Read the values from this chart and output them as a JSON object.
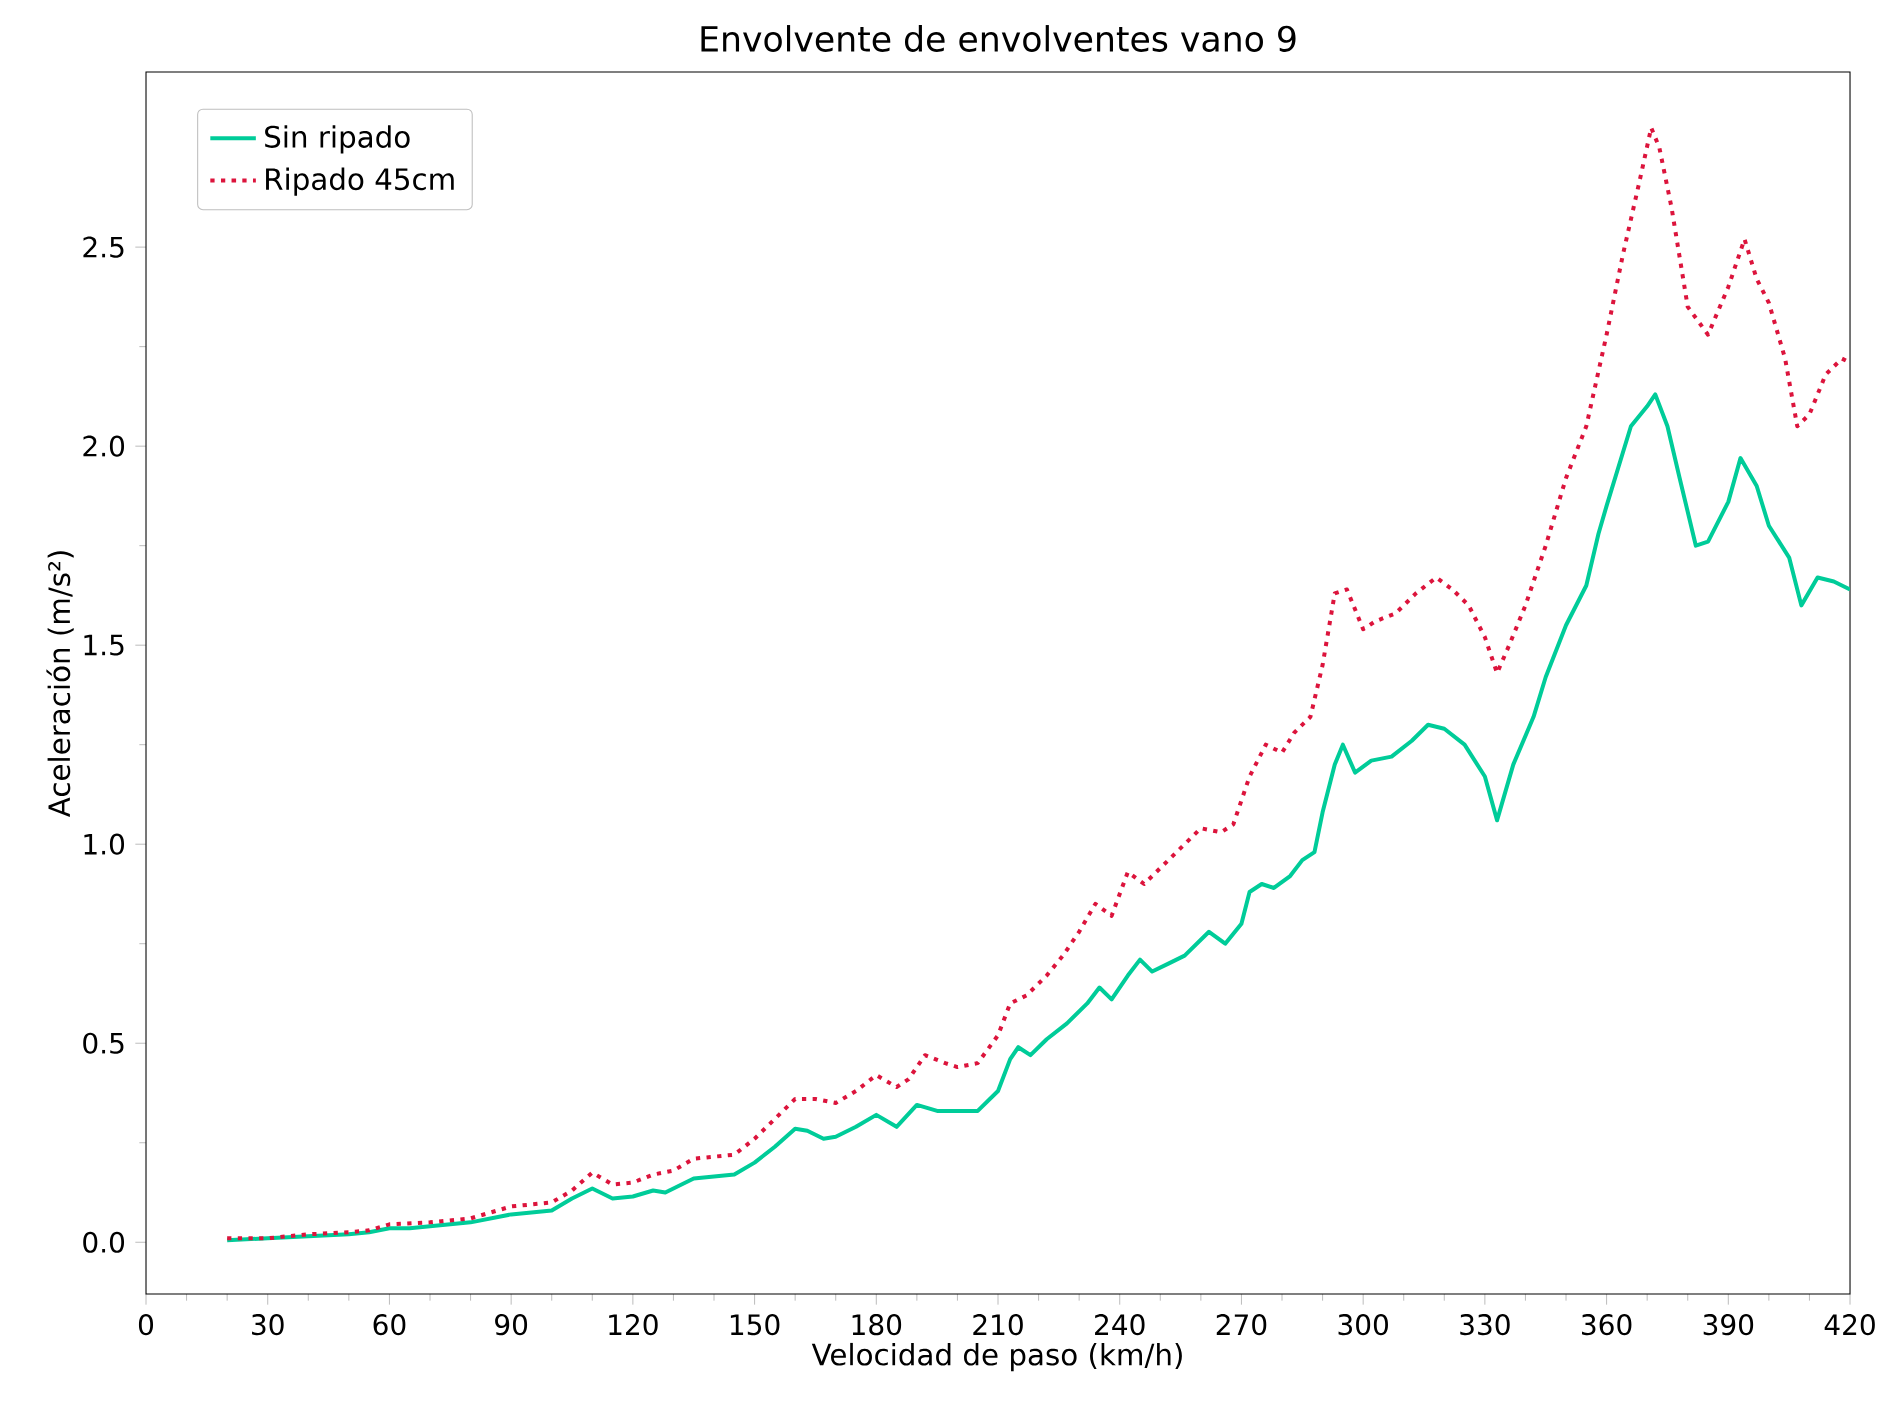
{
  "chart_data": {
    "type": "line",
    "title": "Envolvente de envolventes vano 9",
    "xlabel": "Velocidad de paso (km/h)",
    "ylabel": "Aceleración (m/s²)",
    "xlim": [
      0,
      420
    ],
    "ylim": [
      -0.13,
      2.94
    ],
    "xticks": [
      0,
      30,
      60,
      90,
      120,
      150,
      180,
      210,
      240,
      270,
      300,
      330,
      360,
      390,
      420
    ],
    "yticks": [
      {
        "value": 0,
        "label": "0.0"
      },
      0.5,
      {
        "value": 1,
        "label": "1.0"
      },
      1.5,
      {
        "value": 2,
        "label": "2.0"
      },
      2.5
    ],
    "legend": "top left",
    "series": [
      {
        "name": "Sin ripado",
        "color": "#00cc99",
        "line_style": "solid",
        "x": [
          20,
          30,
          40,
          50,
          55,
          60,
          65,
          70,
          80,
          90,
          95,
          100,
          105,
          110,
          115,
          120,
          125,
          128,
          135,
          140,
          145,
          150,
          155,
          160,
          163,
          167,
          170,
          175,
          180,
          185,
          190,
          195,
          200,
          205,
          210,
          213,
          215,
          218,
          222,
          227,
          232,
          235,
          238,
          242,
          245,
          248,
          252,
          256,
          262,
          266,
          270,
          272,
          275,
          278,
          282,
          285,
          288,
          290,
          293,
          295,
          298,
          302,
          307,
          312,
          316,
          320,
          325,
          330,
          333,
          337,
          342,
          345,
          350,
          355,
          358,
          360,
          363,
          366,
          370,
          372,
          375,
          378,
          382,
          385,
          390,
          393,
          397,
          400,
          405,
          408,
          412,
          416,
          420
        ],
        "values": [
          0.005,
          0.01,
          0.015,
          0.02,
          0.025,
          0.035,
          0.035,
          0.04,
          0.05,
          0.07,
          0.075,
          0.08,
          0.11,
          0.135,
          0.11,
          0.115,
          0.13,
          0.125,
          0.16,
          0.165,
          0.17,
          0.2,
          0.24,
          0.285,
          0.28,
          0.26,
          0.265,
          0.29,
          0.32,
          0.29,
          0.345,
          0.33,
          0.33,
          0.33,
          0.38,
          0.46,
          0.49,
          0.47,
          0.51,
          0.55,
          0.6,
          0.64,
          0.61,
          0.67,
          0.71,
          0.68,
          0.7,
          0.72,
          0.78,
          0.75,
          0.8,
          0.88,
          0.9,
          0.89,
          0.92,
          0.96,
          0.98,
          1.08,
          1.2,
          1.25,
          1.18,
          1.21,
          1.22,
          1.26,
          1.3,
          1.29,
          1.25,
          1.17,
          1.06,
          1.2,
          1.32,
          1.42,
          1.55,
          1.65,
          1.78,
          1.85,
          1.95,
          2.05,
          2.1,
          2.13,
          2.05,
          1.92,
          1.75,
          1.76,
          1.86,
          1.97,
          1.9,
          1.8,
          1.72,
          1.6,
          1.67,
          1.66,
          1.64
        ]
      },
      {
        "name": "Ripado 45cm",
        "color": "#dc143c",
        "line_style": "dotted",
        "x": [
          20,
          30,
          40,
          50,
          55,
          60,
          70,
          80,
          90,
          100,
          105,
          110,
          115,
          120,
          125,
          130,
          135,
          145,
          150,
          155,
          160,
          165,
          170,
          175,
          180,
          185,
          188,
          192,
          197,
          200,
          205,
          210,
          213,
          217,
          222,
          226,
          230,
          234,
          238,
          242,
          246,
          250,
          255,
          260,
          265,
          268,
          272,
          276,
          280,
          283,
          287,
          290,
          293,
          296,
          300,
          303,
          308,
          313,
          318,
          322,
          326,
          330,
          333,
          336,
          340,
          345,
          350,
          355,
          360,
          364,
          368,
          371,
          373,
          376,
          380,
          385,
          390,
          394,
          397,
          400,
          404,
          407,
          410,
          414,
          418,
          420
        ],
        "values": [
          0.01,
          0.01,
          0.02,
          0.025,
          0.03,
          0.045,
          0.05,
          0.06,
          0.09,
          0.1,
          0.13,
          0.175,
          0.145,
          0.15,
          0.17,
          0.18,
          0.21,
          0.22,
          0.26,
          0.31,
          0.36,
          0.36,
          0.35,
          0.38,
          0.42,
          0.39,
          0.41,
          0.47,
          0.45,
          0.44,
          0.45,
          0.52,
          0.6,
          0.62,
          0.67,
          0.72,
          0.78,
          0.85,
          0.82,
          0.93,
          0.9,
          0.94,
          0.99,
          1.04,
          1.03,
          1.05,
          1.17,
          1.25,
          1.23,
          1.28,
          1.32,
          1.45,
          1.63,
          1.64,
          1.54,
          1.56,
          1.58,
          1.63,
          1.67,
          1.64,
          1.6,
          1.52,
          1.43,
          1.5,
          1.6,
          1.75,
          1.92,
          2.05,
          2.28,
          2.48,
          2.66,
          2.8,
          2.75,
          2.6,
          2.35,
          2.28,
          2.4,
          2.52,
          2.42,
          2.36,
          2.22,
          2.05,
          2.08,
          2.18,
          2.22,
          2.21
        ]
      }
    ]
  }
}
